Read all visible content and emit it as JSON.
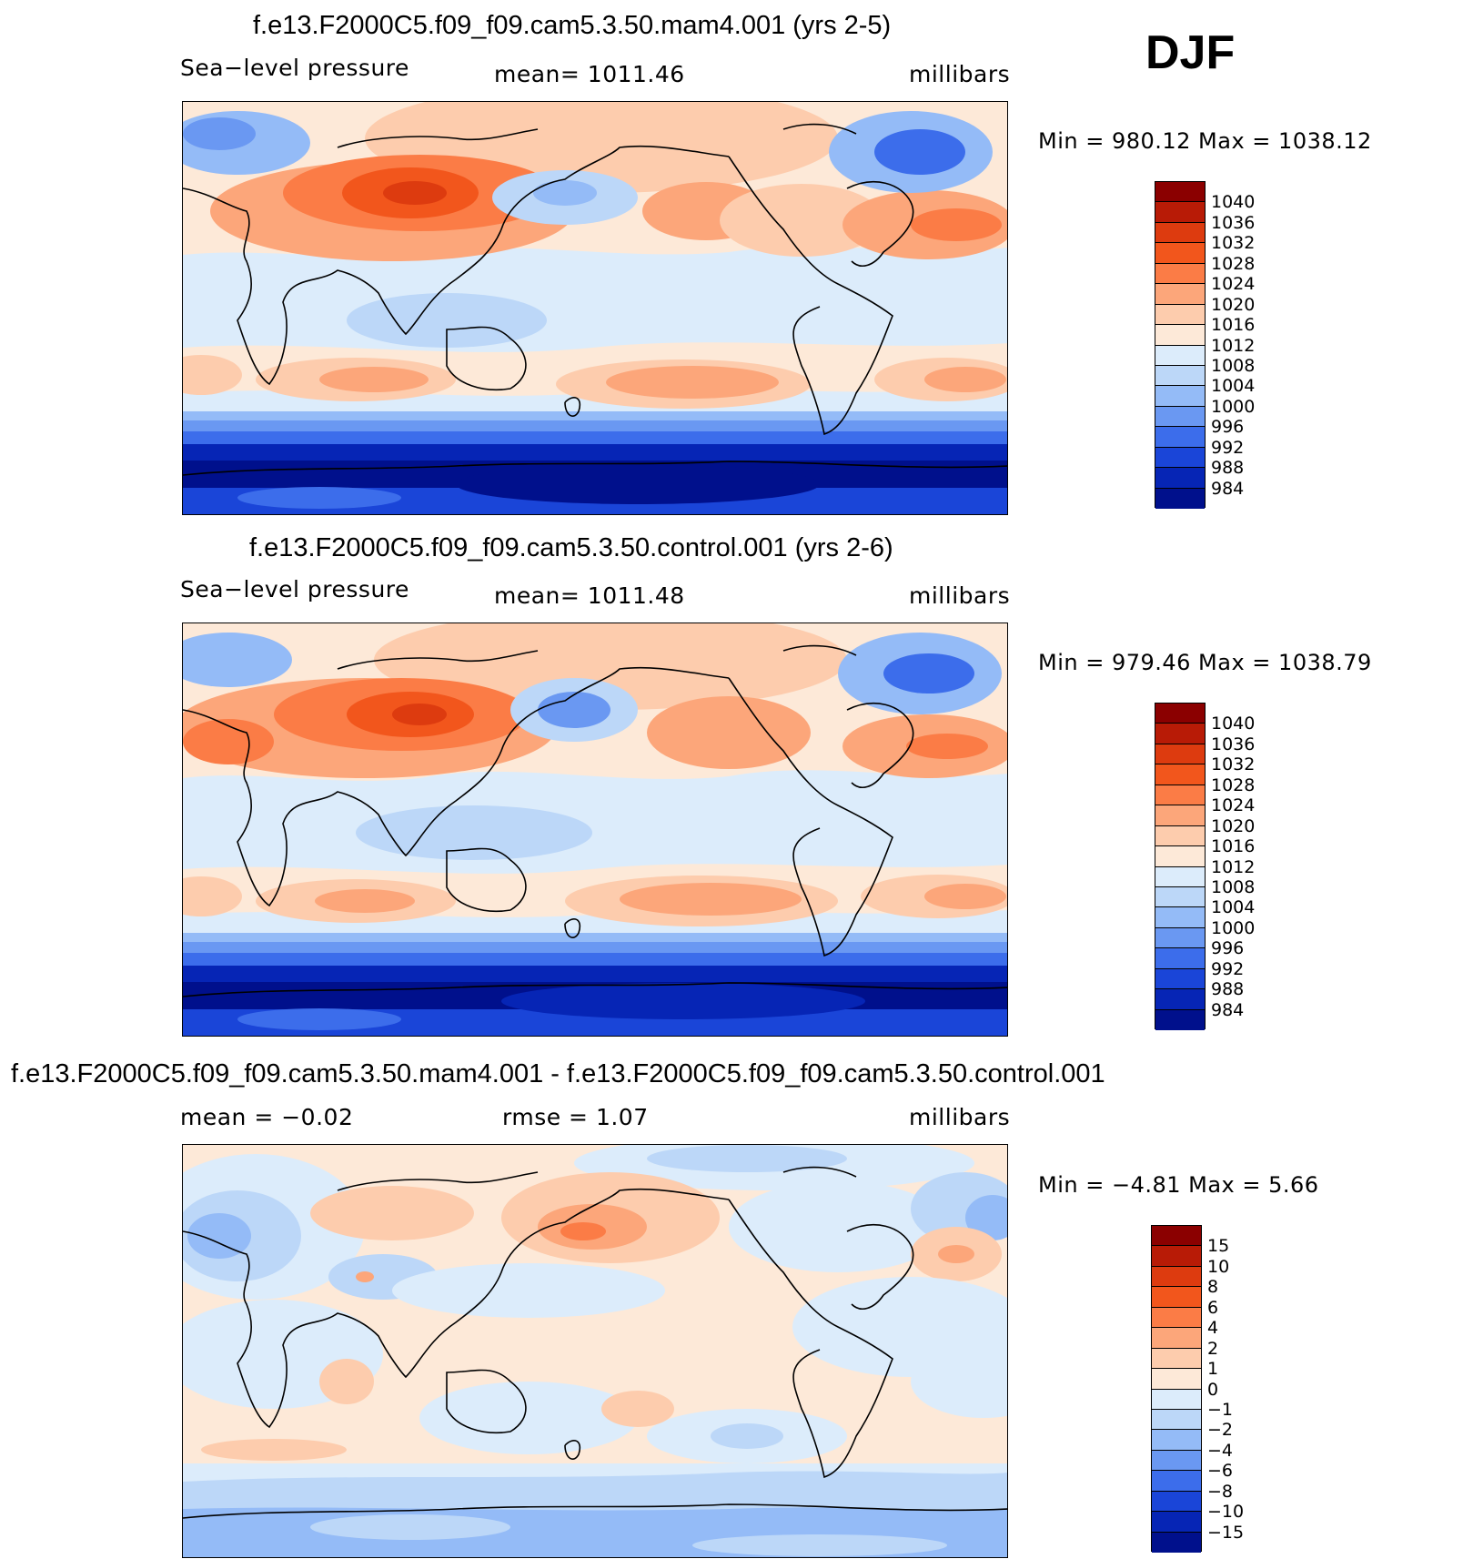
{
  "season": "DJF",
  "panels": [
    {
      "title": "f.e13.F2000C5.f09_f09.cam5.3.50.mam4.001 (yrs 2-5)",
      "variable": "Sea−level pressure",
      "mean_text": "mean=  1011.46",
      "units": "millibars",
      "minmax_text": "Min  =  980.12  Max  =  1038.12",
      "levels": [
        "1040",
        "1036",
        "1032",
        "1028",
        "1024",
        "1020",
        "1016",
        "1012",
        "1008",
        "1004",
        "1000",
        "996",
        "992",
        "988",
        "984"
      ]
    },
    {
      "title": "f.e13.F2000C5.f09_f09.cam5.3.50.control.001 (yrs 2-6)",
      "variable": "Sea−level pressure",
      "mean_text": "mean=  1011.48",
      "units": "millibars",
      "minmax_text": "Min  =  979.46  Max  =  1038.79",
      "levels": [
        "1040",
        "1036",
        "1032",
        "1028",
        "1024",
        "1020",
        "1016",
        "1012",
        "1008",
        "1004",
        "1000",
        "996",
        "992",
        "988",
        "984"
      ]
    },
    {
      "title": "f.e13.F2000C5.f09_f09.cam5.3.50.mam4.001 - f.e13.F2000C5.f09_f09.cam5.3.50.control.001",
      "mean_text": "mean  =    −0.02",
      "rmse_text": "rmse  =     1.07",
      "units": "millibars",
      "minmax_text": "Min  =    −4.81  Max  =      5.66",
      "levels": [
        "15",
        "10",
        "8",
        "6",
        "4",
        "2",
        "1",
        "0",
        "−1",
        "−2",
        "−4",
        "−6",
        "−8",
        "−10",
        "−15"
      ]
    }
  ],
  "colors": [
    "#8b0000",
    "#b81b06",
    "#dd3b0f",
    "#f2561c",
    "#fb7c46",
    "#fca67a",
    "#fdccad",
    "#fde9d8",
    "#dcecfb",
    "#bcd7f8",
    "#94bbf7",
    "#6a98f2",
    "#3c6deb",
    "#1a45d8",
    "#0625b5",
    "#00108c"
  ]
}
